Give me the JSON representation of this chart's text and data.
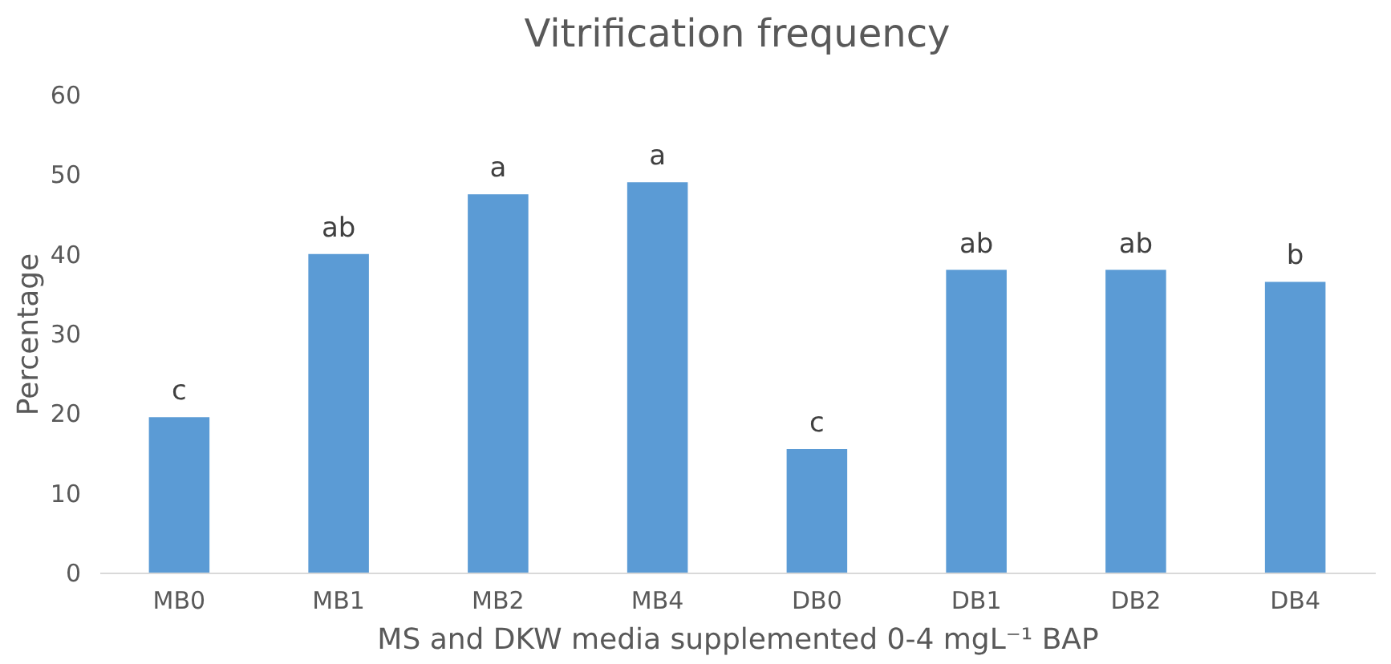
{
  "chart_data": {
    "type": "bar",
    "title": "Vitrification frequency",
    "xlabel": "MS and DKW media supplemented 0-4 mgL⁻¹ BAP",
    "ylabel": "Percentage",
    "categories": [
      "MB0",
      "MB1",
      "MB2",
      "MB4",
      "DB0",
      "DB1",
      "DB2",
      "DB4"
    ],
    "values": [
      19.5,
      40,
      47.5,
      49,
      15.5,
      38,
      38,
      36.5
    ],
    "color": "#5b9bd5",
    "ylim": [
      0,
      60
    ],
    "yticks": [
      0,
      10,
      20,
      30,
      40,
      50,
      60
    ],
    "annotations": [
      {
        "text": "c",
        "x": "MB0",
        "y": 19.5
      },
      {
        "text": "ab",
        "x": "MB1",
        "y": 40
      },
      {
        "text": "a",
        "x": "MB2",
        "y": 47.5
      },
      {
        "text": "a",
        "x": "MB4",
        "y": 49
      },
      {
        "text": "c",
        "x": "DB0",
        "y": 15.5
      },
      {
        "text": "ab",
        "x": "DB1",
        "y": 38
      },
      {
        "text": "ab",
        "x": "DB2",
        "y": 38
      },
      {
        "text": "b",
        "x": "DB4",
        "y": 36.5
      }
    ]
  }
}
